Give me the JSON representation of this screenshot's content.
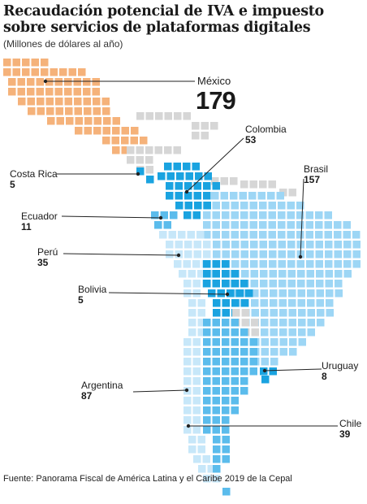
{
  "title": "Recaudación potencial de IVA e impuesto sobre servicios de plataformas digitales",
  "subtitle": "(Millones de dólares al año)",
  "source": "Fuente: Panorama Fiscal de América Latina y el Caribe 2019 de la Cepal",
  "colors": {
    "mexico": "#f5b27a",
    "other": "#d6d6d6",
    "dark_blue": "#1aa3e0",
    "mid_blue": "#5bbcec",
    "light_blue": "#9dd6f5",
    "pale_blue": "#c7e7f9"
  },
  "chart_data": {
    "type": "table",
    "unit": "Millones de dólares al año",
    "countries": [
      {
        "name": "México",
        "value": 179
      },
      {
        "name": "Colombia",
        "value": 53
      },
      {
        "name": "Costa Rica",
        "value": 5
      },
      {
        "name": "Brasil",
        "value": 157
      },
      {
        "name": "Ecuador",
        "value": 11
      },
      {
        "name": "Perú",
        "value": 35
      },
      {
        "name": "Bolivia",
        "value": 5
      },
      {
        "name": "Uruguay",
        "value": 8
      },
      {
        "name": "Argentina",
        "value": 87
      },
      {
        "name": "Chile",
        "value": 39
      }
    ]
  }
}
